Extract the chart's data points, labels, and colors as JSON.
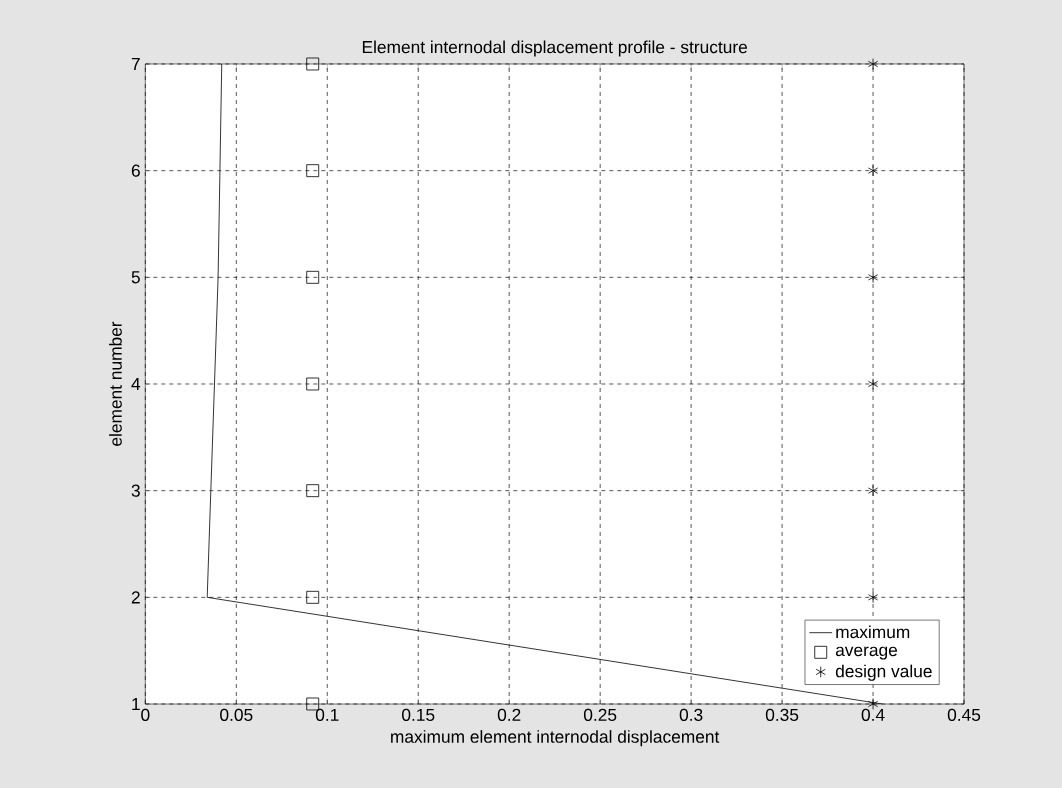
{
  "chart_data": {
    "type": "line",
    "title": "Element internodal displacement profile - structure",
    "xlabel": "maximum element internodal displacement",
    "ylabel": "element number",
    "xlim": [
      0,
      0.45
    ],
    "xticks": [
      0,
      0.05,
      0.1,
      0.15,
      0.2,
      0.25,
      0.3,
      0.35,
      0.4,
      0.45
    ],
    "ylim": [
      1,
      7
    ],
    "yticks": [
      1,
      2,
      3,
      4,
      5,
      6,
      7
    ],
    "grid": true,
    "legend": "bottom right",
    "series": [
      {
        "name": "maximum",
        "color": "#000000",
        "marker": "none",
        "x": [
          0.405,
          0.034,
          0.036,
          0.038,
          0.04,
          0.041,
          0.042
        ],
        "values": [
          1,
          2,
          3,
          4,
          5,
          6,
          7
        ]
      },
      {
        "name": "average",
        "type": "scatter",
        "color": "#000000",
        "marker": "square",
        "x": [
          0.092,
          0.092,
          0.092,
          0.092,
          0.092,
          0.092,
          0.092
        ],
        "values": [
          1,
          2,
          3,
          4,
          5,
          6,
          7
        ]
      },
      {
        "name": "design value",
        "type": "scatter",
        "color": "#000000",
        "marker": "cross",
        "x": [
          0.4,
          0.4,
          0.4,
          0.4,
          0.4,
          0.4,
          0.4
        ],
        "values": [
          1,
          2,
          3,
          4,
          5,
          6,
          7
        ]
      }
    ]
  }
}
